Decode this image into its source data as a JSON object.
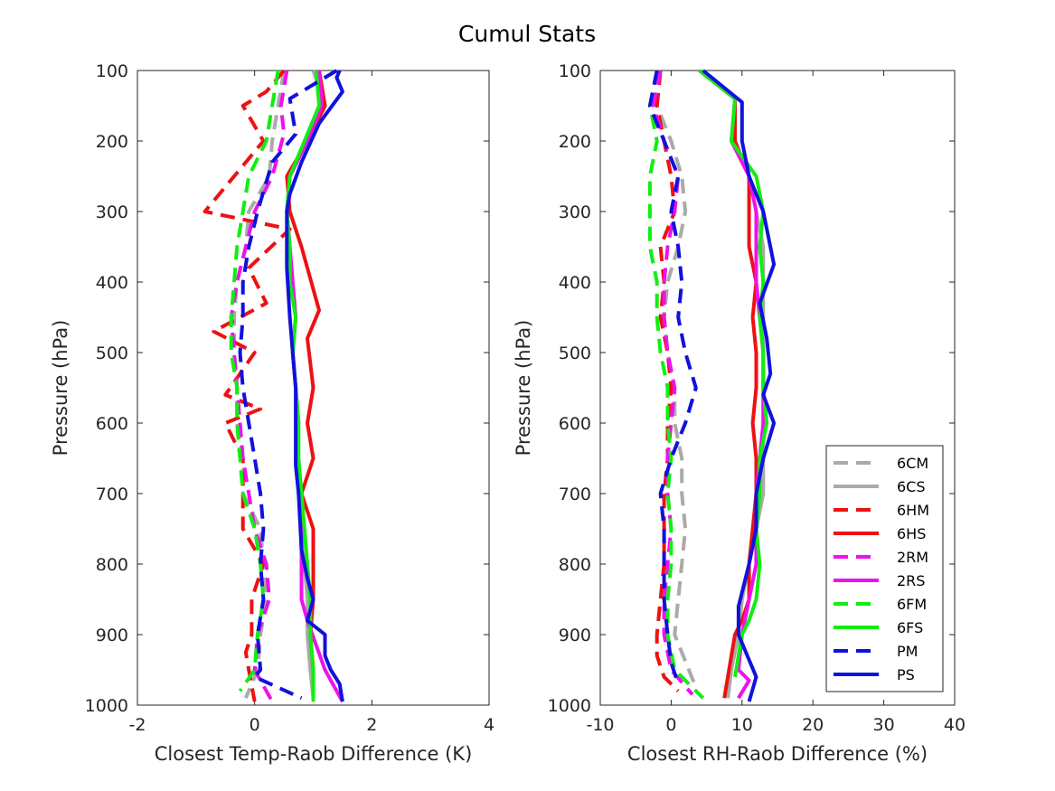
{
  "figure_title": "Cumul Stats",
  "chart_data": [
    {
      "type": "line",
      "xlabel": "Closest Temp-Raob Difference (K)",
      "ylabel": "Pressure (hPa)",
      "xlim": [
        -2,
        4
      ],
      "ylim": [
        100,
        1000
      ],
      "y_reversed": true,
      "xticks": [
        -2,
        0,
        2,
        4
      ],
      "yticks": [
        100,
        200,
        300,
        400,
        500,
        600,
        700,
        800,
        900,
        1000
      ],
      "grid": false,
      "series": [
        {
          "name": "6CM",
          "color": "#aaaaaa",
          "dash": true,
          "x": [
            0.5,
            0.4,
            0.3,
            0.25,
            -0.1,
            -0.15,
            -0.3,
            -0.35,
            -0.35,
            -0.3,
            -0.3,
            -0.2,
            -0.2,
            0.1,
            0.15,
            0.2,
            0.1,
            0.05,
            -0.15
          ],
          "y": [
            100,
            150,
            200,
            250,
            300,
            350,
            400,
            450,
            500,
            550,
            600,
            650,
            700,
            750,
            800,
            850,
            900,
            950,
            990
          ]
        },
        {
          "name": "6CS",
          "color": "#aaaaaa",
          "dash": false,
          "x": [
            1.0,
            1.2,
            0.9,
            0.6,
            0.55,
            0.6,
            0.65,
            0.7,
            0.65,
            0.7,
            0.75,
            0.7,
            0.75,
            0.8,
            0.85,
            0.9,
            0.9,
            0.95,
            1.0
          ],
          "y": [
            100,
            150,
            200,
            250,
            300,
            350,
            400,
            450,
            500,
            550,
            600,
            650,
            700,
            750,
            800,
            850,
            900,
            950,
            990
          ]
        },
        {
          "name": "6HM",
          "color": "#ee1111",
          "dash": true,
          "x": [
            0.5,
            0.2,
            -0.2,
            0.15,
            -0.85,
            0.6,
            -0.1,
            0.2,
            -0.7,
            0.0,
            -0.5,
            0.1,
            -0.5,
            -0.2,
            -0.2,
            -0.2,
            0.15,
            -0.05,
            -0.05,
            -0.15,
            -0.1,
            0.0
          ],
          "y": [
            100,
            130,
            150,
            200,
            300,
            325,
            380,
            430,
            470,
            500,
            560,
            580,
            600,
            650,
            700,
            750,
            800,
            850,
            900,
            925,
            950,
            995
          ]
        },
        {
          "name": "6HS",
          "color": "#ee1111",
          "dash": false,
          "x": [
            1.1,
            1.2,
            0.9,
            0.55,
            0.6,
            0.8,
            1.1,
            0.9,
            1.0,
            0.9,
            1.0,
            0.8,
            1.0,
            1.0,
            1.0,
            0.95,
            1.0,
            1.0,
            1.0
          ],
          "y": [
            100,
            150,
            200,
            250,
            300,
            350,
            440,
            480,
            550,
            600,
            650,
            700,
            750,
            800,
            850,
            900,
            950,
            990,
            995
          ]
        },
        {
          "name": "2RM",
          "color": "#ee11ee",
          "dash": true,
          "x": [
            0.55,
            0.45,
            0.5,
            0.3,
            0.0,
            -0.15,
            -0.3,
            -0.4,
            -0.35,
            -0.3,
            -0.25,
            -0.2,
            -0.1,
            0.0,
            0.2,
            0.25,
            0.05,
            0.0,
            0.3
          ],
          "y": [
            100,
            150,
            190,
            250,
            300,
            350,
            400,
            450,
            500,
            550,
            600,
            650,
            700,
            750,
            800,
            850,
            900,
            950,
            995
          ]
        },
        {
          "name": "2RS",
          "color": "#ee11ee",
          "dash": false,
          "x": [
            1.1,
            1.15,
            0.9,
            0.6,
            0.55,
            0.6,
            0.65,
            0.7,
            0.65,
            0.7,
            0.75,
            0.7,
            0.75,
            0.8,
            0.8,
            0.8,
            0.9,
            1.2,
            1.5
          ],
          "y": [
            100,
            150,
            200,
            250,
            300,
            350,
            400,
            450,
            500,
            550,
            600,
            650,
            700,
            750,
            800,
            850,
            880,
            950,
            995
          ]
        },
        {
          "name": "6FM",
          "color": "#11ee11",
          "dash": true,
          "x": [
            0.4,
            0.3,
            0.2,
            -0.1,
            -0.2,
            -0.3,
            -0.35,
            -0.4,
            -0.4,
            -0.3,
            -0.3,
            -0.25,
            -0.2,
            0.0,
            0.1,
            0.15,
            0.05,
            0.0,
            -0.25
          ],
          "y": [
            100,
            150,
            200,
            250,
            300,
            350,
            400,
            450,
            500,
            550,
            600,
            650,
            700,
            750,
            800,
            850,
            900,
            950,
            980
          ]
        },
        {
          "name": "6FS",
          "color": "#11ee11",
          "dash": false,
          "x": [
            1.05,
            1.1,
            0.85,
            0.6,
            0.55,
            0.6,
            0.6,
            0.7,
            0.65,
            0.7,
            0.75,
            0.75,
            0.8,
            0.85,
            0.9,
            0.95,
            0.95,
            1.0,
            1.0
          ],
          "y": [
            100,
            150,
            200,
            250,
            300,
            350,
            400,
            450,
            500,
            550,
            600,
            650,
            700,
            750,
            800,
            850,
            900,
            950,
            995
          ]
        },
        {
          "name": "PM",
          "color": "#1111dd",
          "dash": true,
          "x": [
            1.4,
            0.6,
            0.7,
            0.3,
            0.05,
            -0.1,
            -0.2,
            -0.2,
            -0.25,
            -0.2,
            -0.1,
            0.0,
            0.1,
            0.15,
            0.1,
            0.15,
            0.05,
            0.1,
            0.0,
            0.8
          ],
          "y": [
            100,
            140,
            190,
            230,
            300,
            350,
            400,
            450,
            500,
            550,
            600,
            650,
            700,
            750,
            800,
            850,
            900,
            950,
            960,
            990
          ]
        },
        {
          "name": "PS",
          "color": "#1111dd",
          "dash": false,
          "x": [
            1.45,
            1.4,
            1.5,
            1.1,
            0.8,
            0.6,
            0.55,
            0.55,
            0.6,
            0.65,
            0.7,
            0.7,
            0.7,
            0.75,
            0.8,
            0.9,
            1.0,
            0.9,
            1.2,
            1.2,
            1.3,
            1.45,
            1.5
          ],
          "y": [
            100,
            110,
            130,
            175,
            230,
            275,
            300,
            380,
            450,
            500,
            550,
            600,
            660,
            700,
            780,
            820,
            850,
            880,
            900,
            930,
            950,
            970,
            995
          ]
        }
      ]
    },
    {
      "type": "line",
      "xlabel": "Closest RH-Raob Difference (%)",
      "ylabel": "Pressure (hPa)",
      "xlim": [
        -10,
        40
      ],
      "ylim": [
        100,
        1000
      ],
      "y_reversed": true,
      "xticks": [
        -10,
        0,
        10,
        20,
        30,
        40
      ],
      "yticks": [
        100,
        200,
        300,
        400,
        500,
        600,
        700,
        800,
        900,
        1000
      ],
      "grid": false,
      "legend": {
        "placement": "lower-right",
        "entries": [
          "6CM",
          "6CS",
          "6HM",
          "6HS",
          "2RM",
          "2RS",
          "6FM",
          "6FS",
          "PM",
          "PS"
        ]
      },
      "series": [
        {
          "name": "6CM",
          "color": "#aaaaaa",
          "dash": true,
          "x": [
            -1.5,
            -2,
            0,
            1.5,
            2,
            1,
            -0.5,
            -1,
            -0.5,
            0.5,
            0.5,
            1.5,
            1.5,
            2,
            1.5,
            1,
            0.5,
            3.5
          ],
          "y": [
            100,
            150,
            200,
            250,
            300,
            350,
            400,
            450,
            500,
            550,
            600,
            650,
            700,
            750,
            800,
            850,
            900,
            975
          ]
        },
        {
          "name": "6CS",
          "color": "#aaaaaa",
          "dash": false,
          "x": [
            4,
            9,
            9,
            11,
            12,
            13,
            13,
            13,
            13,
            13,
            13,
            13,
            13,
            12,
            11,
            10,
            9.5,
            8.5,
            8
          ],
          "y": [
            100,
            140,
            200,
            250,
            300,
            350,
            400,
            450,
            500,
            550,
            600,
            650,
            700,
            750,
            800,
            850,
            900,
            950,
            990
          ]
        },
        {
          "name": "6HM",
          "color": "#ee1111",
          "dash": true,
          "x": [
            -1.5,
            -2,
            -1,
            0,
            0.5,
            -1.5,
            -1,
            -1.5,
            -0.5,
            0,
            -0.5,
            -0.5,
            -1,
            -1,
            -1,
            -1.5,
            -2,
            -2,
            -1,
            1
          ],
          "y": [
            100,
            150,
            200,
            250,
            300,
            350,
            400,
            450,
            500,
            550,
            600,
            650,
            700,
            750,
            800,
            850,
            900,
            930,
            960,
            980
          ]
        },
        {
          "name": "6HS",
          "color": "#ee1111",
          "dash": false,
          "x": [
            4,
            9,
            9,
            11,
            11,
            11,
            12,
            11.5,
            12,
            12,
            11.5,
            12,
            12,
            11.5,
            11,
            11,
            10,
            9,
            8.5,
            8,
            7.5
          ],
          "y": [
            100,
            140,
            200,
            250,
            300,
            350,
            400,
            450,
            500,
            550,
            600,
            650,
            700,
            750,
            800,
            850,
            880,
            900,
            930,
            960,
            990
          ]
        },
        {
          "name": "2RM",
          "color": "#ee11ee",
          "dash": true,
          "x": [
            -1.5,
            -2.5,
            -1,
            1,
            0.5,
            -0.5,
            -1,
            -1,
            -0.5,
            0.5,
            0,
            -0.5,
            -0.5,
            0,
            -0.5,
            -1,
            -1,
            0,
            3
          ],
          "y": [
            100,
            150,
            200,
            250,
            300,
            350,
            400,
            450,
            500,
            550,
            600,
            650,
            700,
            750,
            800,
            850,
            900,
            950,
            985
          ]
        },
        {
          "name": "2RS",
          "color": "#ee11ee",
          "dash": false,
          "x": [
            4,
            9,
            8.5,
            11,
            12,
            12,
            12,
            12.5,
            13,
            13,
            13,
            12.5,
            12,
            12,
            12,
            11,
            10,
            9.5,
            11,
            9.5
          ],
          "y": [
            100,
            140,
            200,
            250,
            300,
            350,
            400,
            450,
            500,
            550,
            600,
            650,
            700,
            750,
            800,
            850,
            900,
            950,
            965,
            990
          ]
        },
        {
          "name": "6FM",
          "color": "#11ee11",
          "dash": true,
          "x": [
            -2,
            -3,
            -2,
            -3,
            -3,
            -3,
            -2,
            -2,
            -1.5,
            -0.5,
            -0.5,
            0,
            -0.5,
            0,
            0,
            -0.5,
            -0.5,
            0.5,
            2,
            4.5
          ],
          "y": [
            100,
            150,
            200,
            250,
            300,
            350,
            400,
            450,
            500,
            550,
            600,
            650,
            700,
            750,
            800,
            850,
            900,
            950,
            965,
            990
          ]
        },
        {
          "name": "6FS",
          "color": "#11ee11",
          "dash": false,
          "x": [
            4,
            9,
            8.5,
            12,
            13,
            12.5,
            13,
            12.5,
            13,
            13,
            13.5,
            12.5,
            12.5,
            12,
            12.5,
            12,
            11,
            10,
            9
          ],
          "y": [
            100,
            140,
            200,
            250,
            300,
            350,
            400,
            450,
            500,
            550,
            600,
            650,
            700,
            750,
            800,
            850,
            880,
            900,
            960
          ]
        },
        {
          "name": "PM",
          "color": "#1111dd",
          "dash": true,
          "x": [
            -2,
            -3,
            -1,
            1,
            0,
            1,
            1.5,
            1,
            2,
            3.5,
            2,
            0,
            -1.5,
            -1,
            -1,
            -1,
            -0.5,
            0,
            1
          ],
          "y": [
            100,
            150,
            200,
            250,
            300,
            350,
            400,
            450,
            500,
            550,
            600,
            650,
            700,
            750,
            800,
            850,
            900,
            940,
            970
          ]
        },
        {
          "name": "PS",
          "color": "#1111dd",
          "dash": false,
          "x": [
            4.5,
            10,
            10,
            11,
            13,
            14.5,
            12.5,
            13.5,
            14,
            13,
            14.5,
            13,
            12,
            12,
            11,
            9.5,
            9.5,
            12,
            11
          ],
          "y": [
            100,
            145,
            200,
            250,
            300,
            375,
            430,
            480,
            530,
            560,
            600,
            650,
            700,
            750,
            800,
            860,
            900,
            960,
            995
          ]
        }
      ]
    }
  ]
}
